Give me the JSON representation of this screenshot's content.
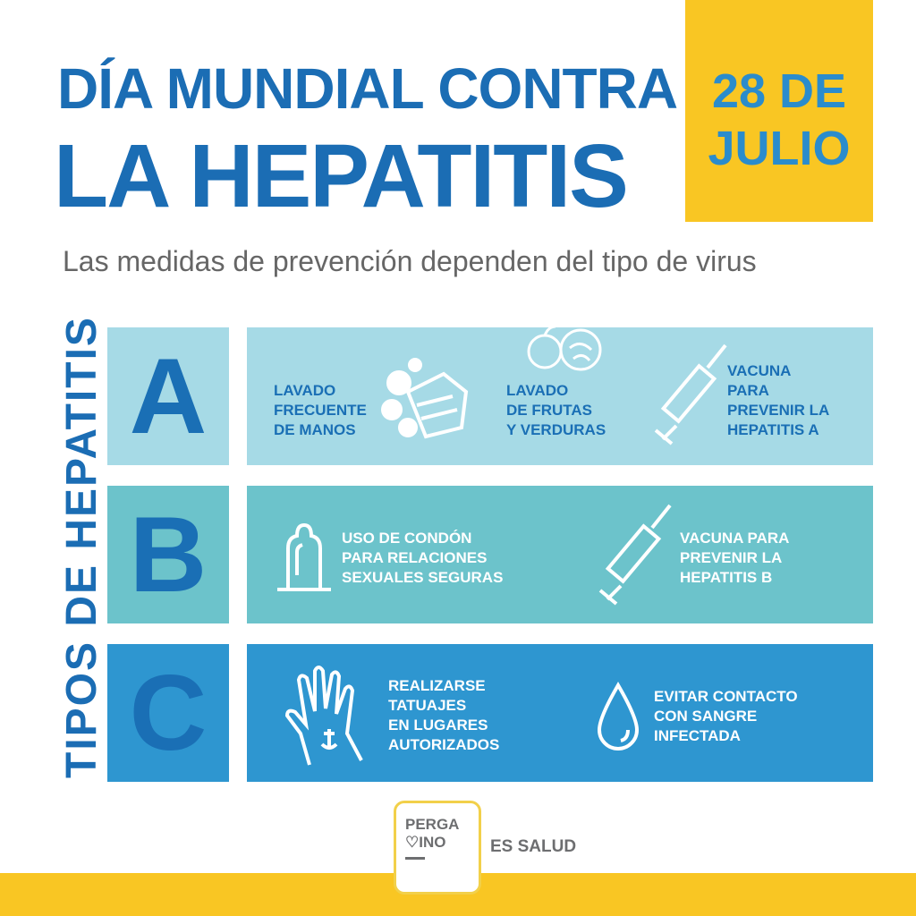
{
  "header": {
    "title_line1": "DÍA MUNDIAL CONTRA",
    "title_line2": "LA HEPATITIS",
    "date_line1": "28 DE",
    "date_line2": "JULIO"
  },
  "subtitle": "Las medidas de prevención dependen del tipo de virus",
  "side_label": "TIPOS DE HEPATITIS",
  "rows": [
    {
      "letter": "A",
      "color": "#a6dae6",
      "items": [
        {
          "icon": "hand-washing-icon",
          "text": [
            "LAVADO",
            "FRECUENTE",
            "DE MANOS"
          ]
        },
        {
          "icon": "fruits-vegetables-icon",
          "text": [
            "LAVADO",
            "DE FRUTAS",
            "Y VERDURAS"
          ]
        },
        {
          "icon": "syringe-icon",
          "text": [
            "VACUNA",
            "PARA",
            "PREVENIR LA",
            "HEPATITIS A"
          ]
        }
      ]
    },
    {
      "letter": "B",
      "color": "#6cc3cb",
      "items": [
        {
          "icon": "condom-icon",
          "text": [
            "USO DE CONDÓN",
            "PARA RELACIONES",
            "SEXUALES SEGURAS"
          ]
        },
        {
          "icon": "syringe-icon",
          "text": [
            "VACUNA PARA",
            "PREVENIR LA",
            "HEPATITIS B"
          ]
        }
      ]
    },
    {
      "letter": "C",
      "color": "#2e96d0",
      "items": [
        {
          "icon": "tattooed-hand-icon",
          "text": [
            "REALIZARSE",
            "TATUAJES",
            "EN LUGARES",
            "AUTORIZADOS"
          ]
        },
        {
          "icon": "blood-drop-icon",
          "text": [
            "EVITAR CONTACTO",
            "CON SANGRE",
            "INFECTADA"
          ]
        }
      ]
    }
  ],
  "footer": {
    "logo_line1": "PERGA",
    "logo_line2": "INO",
    "tagline": "ES SALUD"
  },
  "colors": {
    "title": "#1b6db4",
    "accent_yellow": "#f9c623"
  }
}
